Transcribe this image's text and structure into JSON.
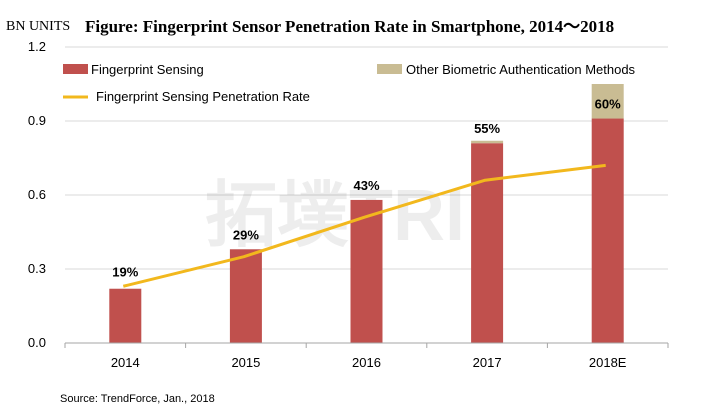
{
  "chart_data": {
    "type": "bar",
    "title": "Figure:  Fingerprint Sensor Penetration Rate in Smartphone, 2014～2018",
    "ylabel": "BN UNITS",
    "categories": [
      "2014",
      "2015",
      "2016",
      "2017",
      "2018E"
    ],
    "ylim": [
      0,
      1.2
    ],
    "yticks": [
      "0.0",
      "0.3",
      "0.6",
      "0.9",
      "1.2"
    ],
    "stacked": true,
    "series": [
      {
        "name": "Fingerprint Sensing",
        "values": [
          0.22,
          0.38,
          0.58,
          0.81,
          0.91
        ],
        "color": "#c0504d"
      },
      {
        "name": "Other Biometric Authentication Methods",
        "values": [
          0,
          0,
          0,
          0.01,
          0.14
        ],
        "color": "#c9bc93"
      }
    ],
    "line": {
      "name": "Fingerprint Sensing Penetration Rate",
      "values": [
        0.23,
        0.35,
        0.51,
        0.66,
        0.72
      ],
      "labels": [
        "19%",
        "29%",
        "43%",
        "55%",
        "60%"
      ],
      "color": "#f2b81d"
    },
    "grid": true,
    "legend": "top",
    "watermark": "拓墣TRI",
    "source": "Source: TrendForce, Jan., 2018"
  }
}
